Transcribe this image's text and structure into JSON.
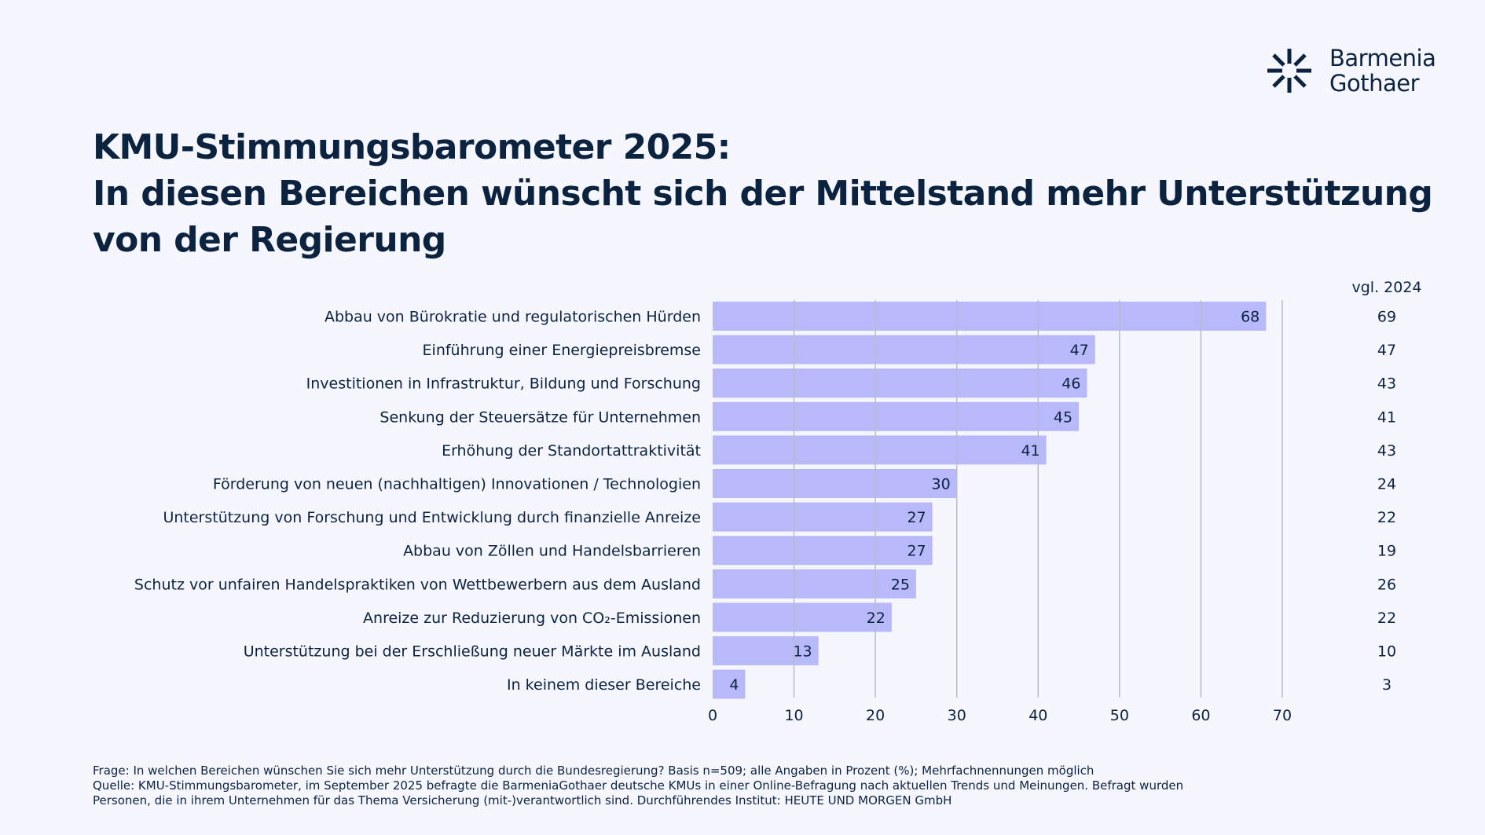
{
  "brand": {
    "line1": "Barmenia",
    "line2": "Gothaer",
    "logo_icon": "starburst-logo-icon",
    "color": "#0c2340"
  },
  "title": {
    "line1": "KMU-Stimmungsbarometer 2025:",
    "line2": "In diesen Bereichen wünscht sich der Mittelstand mehr Unterstützung",
    "line3": "von der Regierung"
  },
  "chart_data": {
    "type": "bar",
    "orientation": "horizontal",
    "categories": [
      "Abbau von Bürokratie und regulatorischen Hürden",
      "Einführung einer Energiepreisbremse",
      "Investitionen in Infrastruktur, Bildung und Forschung",
      "Senkung der Steuersätze für Unternehmen",
      "Erhöhung der Standortattraktivität",
      "Förderung von neuen (nachhaltigen) Innovationen / Technologien",
      "Unterstützung von Forschung und Entwicklung durch finanzielle Anreize",
      "Abbau von Zöllen und Handelsbarrieren",
      "Schutz vor unfairen Handelspraktiken von Wettbewerbern aus dem Ausland",
      "Anreize zur Reduzierung von CO₂-Emissionen",
      "Unterstützung bei der Erschließung neuer Märkte im Ausland",
      "In keinem dieser Bereiche"
    ],
    "values": [
      68,
      47,
      46,
      45,
      41,
      30,
      27,
      27,
      25,
      22,
      13,
      4
    ],
    "comparison_header": "vgl. 2024",
    "comparison_values": [
      69,
      47,
      43,
      41,
      43,
      24,
      22,
      19,
      26,
      22,
      10,
      3
    ],
    "xlim": [
      0,
      70
    ],
    "xticks": [
      0,
      10,
      20,
      30,
      40,
      50,
      60,
      70
    ],
    "grid": "vertical",
    "bar_color": "#b7b9fb",
    "grid_color": "#b9bcc8"
  },
  "footnote": {
    "line1": "Frage: In welchen Bereichen wünschen Sie sich mehr Unterstützung durch die Bundesregierung? Basis n=509;  alle Angaben in Prozent (%); Mehrfachnennungen möglich",
    "line2": "Quelle: KMU-Stimmungsbarometer, im September 2025 befragte die BarmeniaGothaer deutsche KMUs in einer Online-Befragung nach aktuellen Trends und Meinungen. Befragt wurden",
    "line3": "Personen, die in ihrem Unternehmen für das Thema Versicherung (mit-)verantwortlich sind. Durchführendes Institut: HEUTE UND MORGEN GmbH"
  }
}
